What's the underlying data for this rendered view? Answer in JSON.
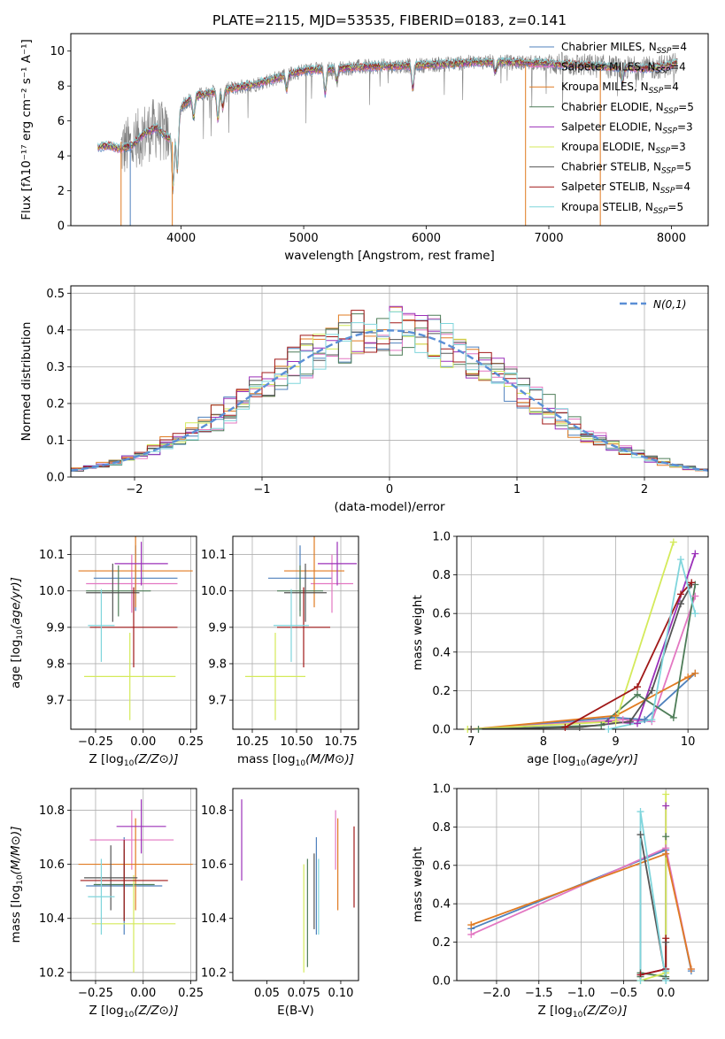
{
  "figure_title": "PLATE=2115, MJD=53535, FIBERID=0183, z=0.141",
  "colors": {
    "chabrier_miles": "#4f81bd",
    "salpeter_miles": "#e377c2",
    "kroupa_miles": "#e07b22",
    "chabrier_elodie": "#4e7d58",
    "salpeter_elodie": "#9b30b9",
    "kroupa_elodie": "#d4ea5a",
    "chabrier_stelib": "#555555",
    "salpeter_stelib": "#a01818",
    "kroupa_stelib": "#7fd5dc",
    "data": "#808080",
    "gaussian": "#5b8fd6",
    "grid": "#b0b0b0"
  },
  "chart_data": [
    {
      "id": "spectrum",
      "type": "line",
      "title": "PLATE=2115, MJD=53535, FIBERID=0183, z=0.141",
      "xlabel": "wavelength [Angstrom, rest frame]",
      "ylabel": "Flux [fλ10⁻¹⁷ erg cm⁻² s⁻¹ A⁻¹]",
      "xlim": [
        3100,
        8300
      ],
      "ylim": [
        0,
        11
      ],
      "xticks": [
        4000,
        5000,
        6000,
        7000,
        8000
      ],
      "yticks": [
        0,
        2,
        4,
        6,
        8,
        10
      ],
      "grid": false,
      "legend_position": "top-right",
      "legend": [
        {
          "label": "Chabrier MILES, N_SSP=4",
          "main": "Chabrier MILES, N",
          "sub": "SSP",
          "tail": "=4",
          "color": "#4f81bd"
        },
        {
          "label": "Salpeter MILES, N_SSP=4",
          "main": "Salpeter MILES, N",
          "sub": "SSP",
          "tail": "=4",
          "color": "#e377c2"
        },
        {
          "label": "Kroupa MILES, N_SSP=4",
          "main": "Kroupa MILES, N",
          "sub": "SSP",
          "tail": "=4",
          "color": "#e07b22"
        },
        {
          "label": "Chabrier ELODIE, N_SSP=5",
          "main": "Chabrier ELODIE, N",
          "sub": "SSP",
          "tail": "=5",
          "color": "#4e7d58"
        },
        {
          "label": "Salpeter ELODIE, N_SSP=3",
          "main": "Salpeter ELODIE, N",
          "sub": "SSP",
          "tail": "=3",
          "color": "#9b30b9"
        },
        {
          "label": "Kroupa ELODIE, N_SSP=3",
          "main": "Kroupa ELODIE, N",
          "sub": "SSP",
          "tail": "=3",
          "color": "#d4ea5a"
        },
        {
          "label": "Chabrier STELIB, N_SSP=5",
          "main": "Chabrier STELIB, N",
          "sub": "SSP",
          "tail": "=5",
          "color": "#555555"
        },
        {
          "label": "Salpeter STELIB, N_SSP=4",
          "main": "Salpeter STELIB, N",
          "sub": "SSP",
          "tail": "=4",
          "color": "#a01818"
        },
        {
          "label": "Kroupa STELIB, N_SSP=5",
          "main": "Kroupa STELIB, N",
          "sub": "SSP",
          "tail": "=5",
          "color": "#7fd5dc"
        }
      ],
      "continuum": {
        "wavelength": [
          3330,
          3400,
          3500,
          3600,
          3700,
          3800,
          3900,
          3950,
          4000,
          4100,
          4300,
          4600,
          5000,
          5500,
          6000,
          6500,
          7000,
          7500,
          7800,
          8000,
          8050
        ],
        "flux": [
          4.5,
          4.6,
          4.4,
          4.6,
          5.3,
          5.6,
          5.0,
          5.5,
          6.8,
          7.4,
          7.7,
          8.1,
          8.9,
          9.1,
          9.2,
          9.4,
          9.3,
          9.1,
          9.0,
          9.2,
          9.4
        ]
      },
      "model_range": [
        3320,
        8050
      ],
      "data_range": [
        3510,
        8050
      ],
      "features": [
        {
          "wavelength": 3934,
          "depth": 3.2
        },
        {
          "wavelength": 3969,
          "depth": 2.8
        },
        {
          "wavelength": 4102,
          "depth": 1.2
        },
        {
          "wavelength": 4300,
          "depth": 1.6
        },
        {
          "wavelength": 4340,
          "depth": 1.0
        },
        {
          "wavelength": 4861,
          "depth": 0.8
        },
        {
          "wavelength": 5175,
          "depth": 1.4
        },
        {
          "wavelength": 5270,
          "depth": 0.7
        },
        {
          "wavelength": 5890,
          "depth": 1.3
        },
        {
          "wavelength": 6563,
          "depth": 0.6
        },
        {
          "wavelength": 7600,
          "depth": 0.9
        }
      ]
    },
    {
      "id": "residuals",
      "type": "line",
      "xlabel": "(data-model)/error",
      "ylabel": "Normed distribution",
      "xlim": [
        -2.5,
        2.5
      ],
      "ylim": [
        0,
        0.52
      ],
      "xticks": [
        -2,
        -1,
        0,
        1,
        2
      ],
      "yticks": [
        0.0,
        0.1,
        0.2,
        0.3,
        0.4,
        0.5
      ],
      "grid": true,
      "legend_position": "top-right",
      "legend": [
        {
          "label": "N(0,1)",
          "color": "#5b8fd6",
          "style": "dashed"
        }
      ],
      "bin_width": 0.1,
      "series": [
        {
          "color": "#4f81bd",
          "offset": 0.02
        },
        {
          "color": "#e377c2",
          "offset": -0.03
        },
        {
          "color": "#e07b22",
          "offset": 0.05
        },
        {
          "color": "#4e7d58",
          "offset": -0.04
        },
        {
          "color": "#9b30b9",
          "offset": 0.01
        },
        {
          "color": "#d4ea5a",
          "offset": 0.03
        },
        {
          "color": "#555555",
          "offset": -0.02
        },
        {
          "color": "#a01818",
          "offset": 0.04
        },
        {
          "color": "#7fd5dc",
          "offset": -0.01
        }
      ]
    },
    {
      "id": "age-vs-z",
      "type": "scatter",
      "xlabel": "Z [log10(Z/Z⊙)]",
      "ylabel": "age [log10(age/yr)]",
      "xlim": [
        -0.38,
        0.28
      ],
      "ylim": [
        9.62,
        10.15
      ],
      "xticks": [
        -0.25,
        0.0,
        0.25
      ],
      "yticks": [
        9.7,
        9.8,
        9.9,
        10.0,
        10.1
      ],
      "grid": true,
      "points": [
        {
          "x": -0.04,
          "y": 10.035,
          "xerr": 0.22,
          "yerr": 0.09,
          "color": "#4f81bd"
        },
        {
          "x": -0.06,
          "y": 10.02,
          "xerr": 0.24,
          "yerr": 0.08,
          "color": "#e377c2"
        },
        {
          "x": -0.04,
          "y": 10.055,
          "xerr": 0.3,
          "yerr": 0.1,
          "color": "#e07b22"
        },
        {
          "x": -0.13,
          "y": 10.0,
          "xerr": 0.17,
          "yerr": 0.07,
          "color": "#4e7d58"
        },
        {
          "x": -0.01,
          "y": 10.075,
          "xerr": 0.14,
          "yerr": 0.06,
          "color": "#9b30b9"
        },
        {
          "x": -0.07,
          "y": 9.765,
          "xerr": 0.24,
          "yerr": 0.12,
          "color": "#d4ea5a"
        },
        {
          "x": -0.16,
          "y": 9.995,
          "xerr": 0.14,
          "yerr": 0.08,
          "color": "#555555"
        },
        {
          "x": -0.05,
          "y": 9.9,
          "xerr": 0.23,
          "yerr": 0.11,
          "color": "#a01818"
        },
        {
          "x": -0.22,
          "y": 9.905,
          "xerr": 0.07,
          "yerr": 0.1,
          "color": "#7fd5dc"
        }
      ]
    },
    {
      "id": "age-vs-mass",
      "type": "scatter",
      "xlabel": "mass [log10(M/M⊙)]",
      "ylabel": "",
      "xlim": [
        10.14,
        10.85
      ],
      "ylim": [
        9.62,
        10.15
      ],
      "xticks": [
        10.25,
        10.5,
        10.75
      ],
      "yticks": [
        9.7,
        9.8,
        9.9,
        10.0,
        10.1
      ],
      "grid": true,
      "points": [
        {
          "x": 10.52,
          "y": 10.035,
          "xerr": 0.18,
          "yerr": 0.09,
          "color": "#4f81bd"
        },
        {
          "x": 10.7,
          "y": 10.02,
          "xerr": 0.12,
          "yerr": 0.08,
          "color": "#e377c2"
        },
        {
          "x": 10.6,
          "y": 10.055,
          "xerr": 0.17,
          "yerr": 0.1,
          "color": "#e07b22"
        },
        {
          "x": 10.52,
          "y": 10.0,
          "xerr": 0.13,
          "yerr": 0.07,
          "color": "#4e7d58"
        },
        {
          "x": 10.73,
          "y": 10.075,
          "xerr": 0.11,
          "yerr": 0.06,
          "color": "#9b30b9"
        },
        {
          "x": 10.38,
          "y": 9.765,
          "xerr": 0.17,
          "yerr": 0.12,
          "color": "#d4ea5a"
        },
        {
          "x": 10.55,
          "y": 9.995,
          "xerr": 0.12,
          "yerr": 0.08,
          "color": "#555555"
        },
        {
          "x": 10.54,
          "y": 9.9,
          "xerr": 0.15,
          "yerr": 0.11,
          "color": "#a01818"
        },
        {
          "x": 10.47,
          "y": 9.905,
          "xerr": 0.1,
          "yerr": 0.1,
          "color": "#7fd5dc"
        }
      ]
    },
    {
      "id": "mass-weight-vs-age",
      "type": "line",
      "xlabel": "age [log10(age/yr)]",
      "ylabel": "mass weight",
      "xlim": [
        6.8,
        10.28
      ],
      "ylim": [
        0,
        1.0
      ],
      "xticks": [
        7,
        8,
        9,
        10
      ],
      "yticks": [
        0.0,
        0.2,
        0.4,
        0.6,
        0.8,
        1.0
      ],
      "grid": true,
      "series": [
        {
          "color": "#4f81bd",
          "x": [
            7.0,
            9.0,
            9.4,
            10.1
          ],
          "y": [
            0.0,
            0.06,
            0.05,
            0.29
          ]
        },
        {
          "color": "#e377c2",
          "x": [
            7.0,
            9.1,
            9.5,
            10.1
          ],
          "y": [
            0.0,
            0.05,
            0.04,
            0.69
          ]
        },
        {
          "color": "#e07b22",
          "x": [
            7.0,
            9.0,
            10.0,
            10.1
          ],
          "y": [
            0.0,
            0.07,
            0.27,
            0.29
          ]
        },
        {
          "color": "#4e7d58",
          "x": [
            7.1,
            8.8,
            9.3,
            9.8,
            10.1
          ],
          "y": [
            0.0,
            0.02,
            0.18,
            0.06,
            0.75
          ]
        },
        {
          "color": "#9b30b9",
          "x": [
            8.9,
            9.3,
            10.1
          ],
          "y": [
            0.04,
            0.03,
            0.91
          ]
        },
        {
          "color": "#d4ea5a",
          "x": [
            6.95,
            9.0,
            9.8
          ],
          "y": [
            0.0,
            0.04,
            0.97
          ]
        },
        {
          "color": "#555555",
          "x": [
            7.0,
            8.5,
            9.2,
            9.5,
            9.9,
            10.05
          ],
          "y": [
            0.0,
            0.01,
            0.04,
            0.2,
            0.65,
            0.75
          ]
        },
        {
          "color": "#a01818",
          "x": [
            8.3,
            9.3,
            9.9,
            10.05
          ],
          "y": [
            0.01,
            0.22,
            0.7,
            0.76
          ]
        },
        {
          "color": "#7fd5dc",
          "x": [
            8.9,
            9.5,
            9.9,
            10.1
          ],
          "y": [
            0.0,
            0.05,
            0.88,
            0.6
          ]
        }
      ]
    },
    {
      "id": "mass-vs-z",
      "type": "scatter",
      "xlabel": "Z [log10(Z/Z⊙)]",
      "ylabel": "mass [log10(M/M⊙)]",
      "xlim": [
        -0.38,
        0.28
      ],
      "ylim": [
        10.17,
        10.88
      ],
      "xticks": [
        -0.25,
        0.0,
        0.25
      ],
      "yticks": [
        10.2,
        10.4,
        10.6,
        10.8
      ],
      "grid": true,
      "points": [
        {
          "x": -0.1,
          "y": 10.52,
          "xerr": 0.2,
          "yerr": 0.18,
          "color": "#4f81bd"
        },
        {
          "x": -0.06,
          "y": 10.69,
          "xerr": 0.22,
          "yerr": 0.11,
          "color": "#e377c2"
        },
        {
          "x": -0.04,
          "y": 10.6,
          "xerr": 0.3,
          "yerr": 0.17,
          "color": "#e07b22"
        },
        {
          "x": -0.1,
          "y": 10.525,
          "xerr": 0.16,
          "yerr": 0.13,
          "color": "#4e7d58"
        },
        {
          "x": -0.01,
          "y": 10.74,
          "xerr": 0.13,
          "yerr": 0.1,
          "color": "#9b30b9"
        },
        {
          "x": -0.05,
          "y": 10.38,
          "xerr": 0.22,
          "yerr": 0.18,
          "color": "#d4ea5a"
        },
        {
          "x": -0.17,
          "y": 10.55,
          "xerr": 0.14,
          "yerr": 0.12,
          "color": "#555555"
        },
        {
          "x": -0.1,
          "y": 10.54,
          "xerr": 0.23,
          "yerr": 0.15,
          "color": "#a01818"
        },
        {
          "x": -0.22,
          "y": 10.48,
          "xerr": 0.07,
          "yerr": 0.14,
          "color": "#7fd5dc"
        }
      ]
    },
    {
      "id": "mass-vs-ebv",
      "type": "scatter",
      "xlabel": "E(B-V)",
      "ylabel": "",
      "xlim": [
        0.027,
        0.112
      ],
      "ylim": [
        10.17,
        10.88
      ],
      "xticks": [
        0.05,
        0.075,
        0.1
      ],
      "yticks": [
        10.2,
        10.4,
        10.6,
        10.8
      ],
      "grid": false,
      "points": [
        {
          "x": 0.0835,
          "y": 10.52,
          "yerr": 0.18,
          "color": "#4f81bd"
        },
        {
          "x": 0.0965,
          "y": 10.69,
          "yerr": 0.11,
          "color": "#e377c2"
        },
        {
          "x": 0.098,
          "y": 10.6,
          "yerr": 0.17,
          "color": "#e07b22"
        },
        {
          "x": 0.0775,
          "y": 10.42,
          "yerr": 0.2,
          "color": "#4e7d58"
        },
        {
          "x": 0.033,
          "y": 10.69,
          "yerr": 0.15,
          "color": "#9b30b9"
        },
        {
          "x": 0.075,
          "y": 10.4,
          "yerr": 0.2,
          "color": "#d4ea5a"
        },
        {
          "x": 0.082,
          "y": 10.5,
          "yerr": 0.14,
          "color": "#555555"
        },
        {
          "x": 0.109,
          "y": 10.59,
          "yerr": 0.15,
          "color": "#a01818"
        },
        {
          "x": 0.085,
          "y": 10.48,
          "yerr": 0.14,
          "color": "#7fd5dc"
        }
      ]
    },
    {
      "id": "mass-weight-vs-z",
      "type": "line",
      "xlabel": "Z [log10(Z/Z⊙)]",
      "ylabel": "mass weight",
      "xlim": [
        -2.47,
        0.5
      ],
      "ylim": [
        0,
        1.0
      ],
      "xticks": [
        -2.0,
        -1.5,
        -1.0,
        -0.5,
        0.0
      ],
      "yticks": [
        0.0,
        0.2,
        0.4,
        0.6,
        0.8,
        1.0
      ],
      "grid": true,
      "series": [
        {
          "color": "#4f81bd",
          "x": [
            -2.3,
            0.0,
            0.3
          ],
          "y": [
            0.27,
            0.68,
            0.05
          ]
        },
        {
          "color": "#e377c2",
          "x": [
            -2.3,
            0.0,
            0.3
          ],
          "y": [
            0.24,
            0.69,
            0.06
          ]
        },
        {
          "color": "#e07b22",
          "x": [
            -2.3,
            0.0,
            0.3
          ],
          "y": [
            0.29,
            0.66,
            0.06
          ]
        },
        {
          "color": "#4e7d58",
          "x": [
            -0.3,
            -0.3,
            0.0,
            0.0
          ],
          "y": [
            0.02,
            0.04,
            0.02,
            0.75
          ]
        },
        {
          "color": "#9b30b9",
          "x": [
            -0.3,
            0.0,
            0.0
          ],
          "y": [
            0.03,
            0.06,
            0.91
          ]
        },
        {
          "color": "#d4ea5a",
          "x": [
            -0.3,
            0.0,
            0.0
          ],
          "y": [
            0.0,
            0.04,
            0.97
          ]
        },
        {
          "color": "#555555",
          "x": [
            -0.3,
            -0.3,
            0.0,
            0.0
          ],
          "y": [
            0.03,
            0.76,
            0.01,
            0.2
          ]
        },
        {
          "color": "#a01818",
          "x": [
            -0.3,
            0.0,
            0.0
          ],
          "y": [
            0.03,
            0.06,
            0.22
          ]
        },
        {
          "color": "#7fd5dc",
          "x": [
            -0.3,
            -0.3,
            0.0,
            0.0
          ],
          "y": [
            0.0,
            0.88,
            0.0,
            0.05
          ]
        }
      ]
    }
  ]
}
